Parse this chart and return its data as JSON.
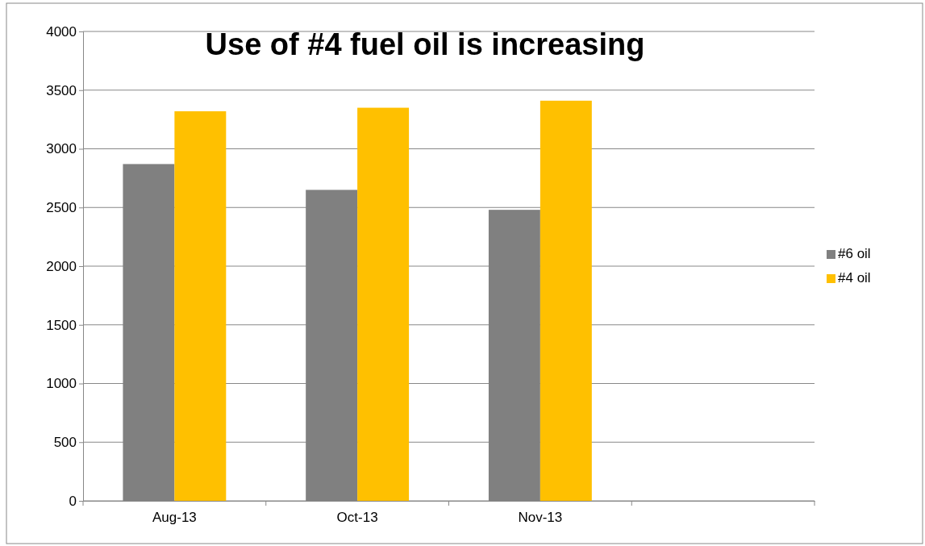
{
  "chart_data": {
    "type": "bar",
    "title": "Use of #4 fuel oil is increasing",
    "categories": [
      "Aug-13",
      "Oct-13",
      "Nov-13",
      null
    ],
    "series": [
      {
        "name": "#6 oil",
        "color": "#808080",
        "values": [
          2870,
          2650,
          2480,
          null
        ]
      },
      {
        "name": "#4 oil",
        "color": "#ffc000",
        "values": [
          3320,
          3350,
          3410,
          null
        ]
      }
    ],
    "ylim": [
      0,
      4000
    ],
    "yticks": [
      0,
      500,
      1000,
      1500,
      2000,
      2500,
      3000,
      3500,
      4000
    ],
    "grid": "y",
    "legend": "right"
  }
}
